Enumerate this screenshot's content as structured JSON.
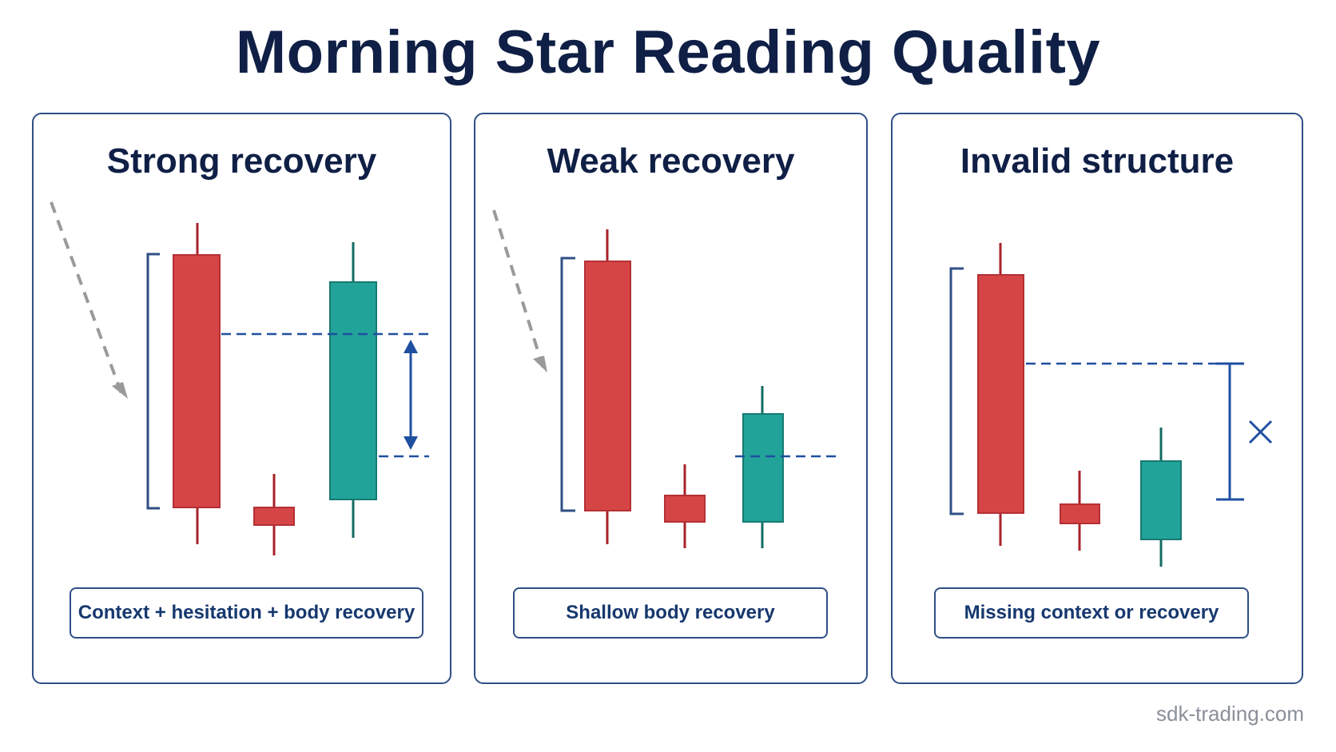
{
  "title": "Morning Star Reading Quality",
  "panels": [
    {
      "title": "Strong recovery",
      "caption": "Context + hesitation + body recovery"
    },
    {
      "title": "Weak recovery",
      "caption": "Shallow body recovery"
    },
    {
      "title": "Invalid structure",
      "caption": "Missing context or recovery"
    }
  ],
  "watermark": "sdk-trading.com",
  "colors": {
    "bearish": "#d64545",
    "bullish": "#22a39a",
    "frame": "#2f4f85",
    "annotation": "#1f4fa0",
    "trend_arrow": "#9a9a9a"
  }
}
